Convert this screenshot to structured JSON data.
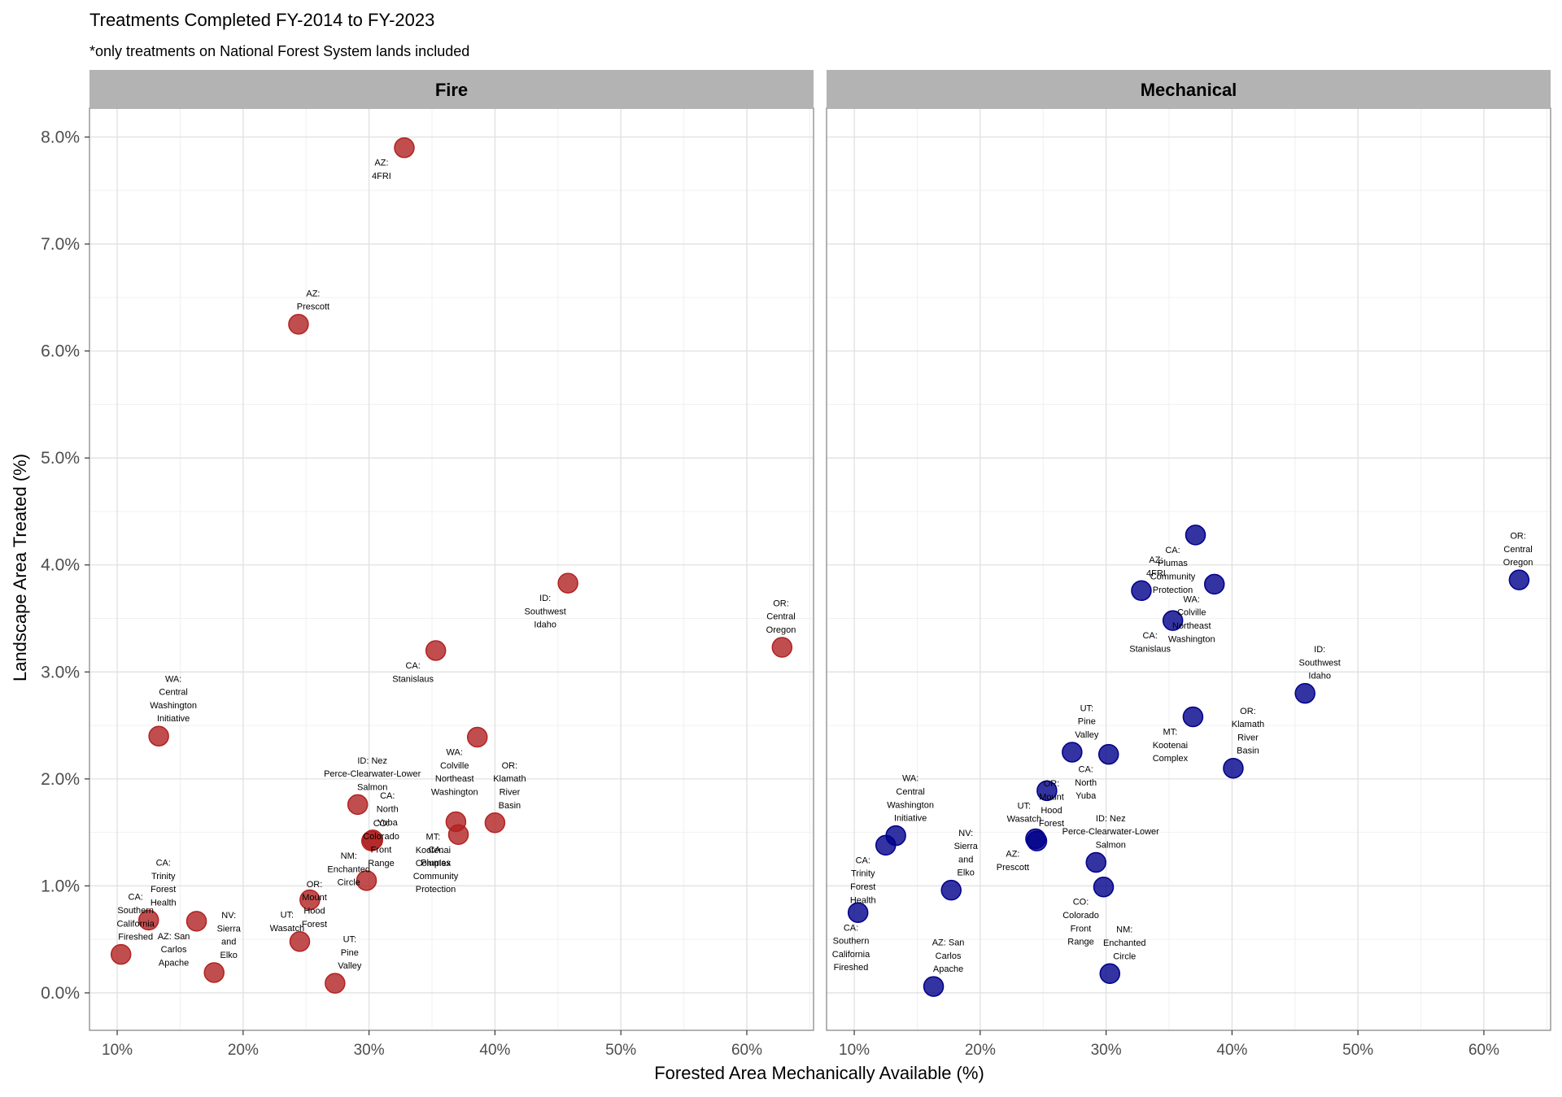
{
  "chart_data": {
    "type": "scatter",
    "title": "Treatments Completed FY-2014 to FY-2023",
    "subtitle": "*only treatments on National Forest System lands included",
    "xlabel": "Forested Area Mechanically Available (%)",
    "ylabel": "Landscape Area Treated (%)",
    "x_ticks": [
      "10%",
      "20%",
      "30%",
      "40%",
      "50%",
      "60%"
    ],
    "y_ticks": [
      "0.0%",
      "1.0%",
      "2.0%",
      "3.0%",
      "4.0%",
      "5.0%",
      "6.0%",
      "7.0%",
      "8.0%"
    ],
    "xlim": [
      7.8,
      65.3
    ],
    "ylim": [
      -0.35,
      8.27
    ],
    "grid": true,
    "legend": "none",
    "colors": {
      "fire": "#b22222",
      "mechanical": "#00008b",
      "strip": "#b3b3b3",
      "panel_border": "#999999",
      "grid_major": "#e0e0e0",
      "grid_minor": "#f0f0f0"
    },
    "panels": [
      {
        "name": "Fire",
        "color": "#b22222",
        "points": [
          {
            "x": 32.8,
            "y": 7.9,
            "label": [
              "AZ:",
              "4FRI"
            ]
          },
          {
            "x": 24.4,
            "y": 6.25,
            "label": [
              "AZ:",
              "Prescott"
            ]
          },
          {
            "x": 45.8,
            "y": 3.83,
            "label": [
              "ID:",
              "Southwest",
              "Idaho"
            ]
          },
          {
            "x": 62.8,
            "y": 3.23,
            "label": [
              "OR:",
              "Central",
              "Oregon"
            ]
          },
          {
            "x": 35.3,
            "y": 3.2,
            "label": [
              "CA:",
              "Stanislaus"
            ]
          },
          {
            "x": 13.3,
            "y": 2.4,
            "label": [
              "WA:",
              "Central",
              "Washington",
              "Initiative"
            ]
          },
          {
            "x": 38.6,
            "y": 2.39,
            "label": [
              "WA:",
              "Colville",
              "Northeast",
              "Washington"
            ]
          },
          {
            "x": 29.1,
            "y": 1.76,
            "label": [
              "ID: Nez",
              "Perce-Clearwater-Lower",
              "Salmon"
            ]
          },
          {
            "x": 36.9,
            "y": 1.6,
            "label": [
              "MT:",
              "Kootenai",
              "Complex"
            ]
          },
          {
            "x": 40.0,
            "y": 1.59,
            "label": [
              "OR:",
              "Klamath",
              "River",
              "Basin"
            ]
          },
          {
            "x": 37.1,
            "y": 1.48,
            "label": [
              "CA:",
              "Plumas",
              "Community",
              "Protection"
            ]
          },
          {
            "x": 30.3,
            "y": 1.43,
            "label": [
              "CA:",
              "North",
              "Yuba"
            ]
          },
          {
            "x": 30.2,
            "y": 1.42,
            "label": [
              "NM:",
              "Enchanted",
              "Circle"
            ]
          },
          {
            "x": 29.8,
            "y": 1.05,
            "label": [
              "CO:",
              "Colorado",
              "Front",
              "Range"
            ]
          },
          {
            "x": 25.3,
            "y": 0.87,
            "label": [
              "UT:",
              "Wasatch"
            ]
          },
          {
            "x": 12.5,
            "y": 0.68,
            "label": [
              "CA:",
              "Trinity",
              "Forest",
              "Health"
            ]
          },
          {
            "x": 16.3,
            "y": 0.67,
            "label": [
              "AZ: San",
              "Carlos",
              "Apache"
            ]
          },
          {
            "x": 24.5,
            "y": 0.48,
            "label": [
              "OR:",
              "Mount",
              "Hood",
              "Forest"
            ]
          },
          {
            "x": 10.3,
            "y": 0.36,
            "label": [
              "CA:",
              "Southern",
              "California",
              "Fireshed"
            ]
          },
          {
            "x": 17.7,
            "y": 0.19,
            "label": [
              "NV:",
              "Sierra",
              "and",
              "Elko"
            ]
          },
          {
            "x": 27.3,
            "y": 0.09,
            "label": [
              "UT:",
              "Pine",
              "Valley"
            ]
          }
        ]
      },
      {
        "name": "Mechanical",
        "color": "#00008b",
        "points": [
          {
            "x": 37.1,
            "y": 4.28,
            "label": [
              "CA:",
              "Plumas",
              "Community",
              "Protection"
            ]
          },
          {
            "x": 62.8,
            "y": 3.86,
            "label": [
              "OR:",
              "Central",
              "Oregon"
            ]
          },
          {
            "x": 38.6,
            "y": 3.82,
            "label": [
              "WA:",
              "Colville",
              "Northeast",
              "Washington"
            ]
          },
          {
            "x": 32.8,
            "y": 3.76,
            "label": [
              "AZ:",
              "4FRI"
            ]
          },
          {
            "x": 35.3,
            "y": 3.48,
            "label": [
              "CA:",
              "Stanislaus"
            ]
          },
          {
            "x": 45.8,
            "y": 2.8,
            "label": [
              "ID:",
              "Southwest",
              "Idaho"
            ]
          },
          {
            "x": 36.9,
            "y": 2.58,
            "label": [
              "MT:",
              "Kootenai",
              "Complex"
            ]
          },
          {
            "x": 27.3,
            "y": 2.25,
            "label": [
              "UT:",
              "Pine",
              "Valley"
            ]
          },
          {
            "x": 30.2,
            "y": 2.23,
            "label": [
              "CA:",
              "North",
              "Yuba"
            ]
          },
          {
            "x": 40.1,
            "y": 2.1,
            "label": [
              "OR:",
              "Klamath",
              "River",
              "Basin"
            ]
          },
          {
            "x": 25.3,
            "y": 1.89,
            "label": [
              "UT:",
              "Wasatch"
            ]
          },
          {
            "x": 13.3,
            "y": 1.47,
            "label": [
              "WA:",
              "Central",
              "Washington",
              "Initiative"
            ]
          },
          {
            "x": 24.4,
            "y": 1.44,
            "label": [
              "AZ:",
              "Prescott"
            ]
          },
          {
            "x": 24.5,
            "y": 1.42,
            "label": [
              "OR:",
              "Mount",
              "Hood",
              "Forest"
            ]
          },
          {
            "x": 12.5,
            "y": 1.38,
            "label": [
              "CA:",
              "Trinity",
              "Forest",
              "Health"
            ]
          },
          {
            "x": 29.2,
            "y": 1.22,
            "label": [
              "ID: Nez",
              "Perce-Clearwater-Lower",
              "Salmon"
            ]
          },
          {
            "x": 29.8,
            "y": 0.99,
            "label": [
              "CO:",
              "Colorado",
              "Front",
              "Range"
            ]
          },
          {
            "x": 17.7,
            "y": 0.96,
            "label": [
              "NV:",
              "Sierra",
              "and",
              "Elko"
            ]
          },
          {
            "x": 10.3,
            "y": 0.75,
            "label": [
              "CA:",
              "Southern",
              "California",
              "Fireshed"
            ]
          },
          {
            "x": 30.3,
            "y": 0.18,
            "label": [
              "NM:",
              "Enchanted",
              "Circle"
            ]
          },
          {
            "x": 16.3,
            "y": 0.06,
            "label": [
              "AZ: San",
              "Carlos",
              "Apache"
            ]
          }
        ]
      }
    ]
  }
}
